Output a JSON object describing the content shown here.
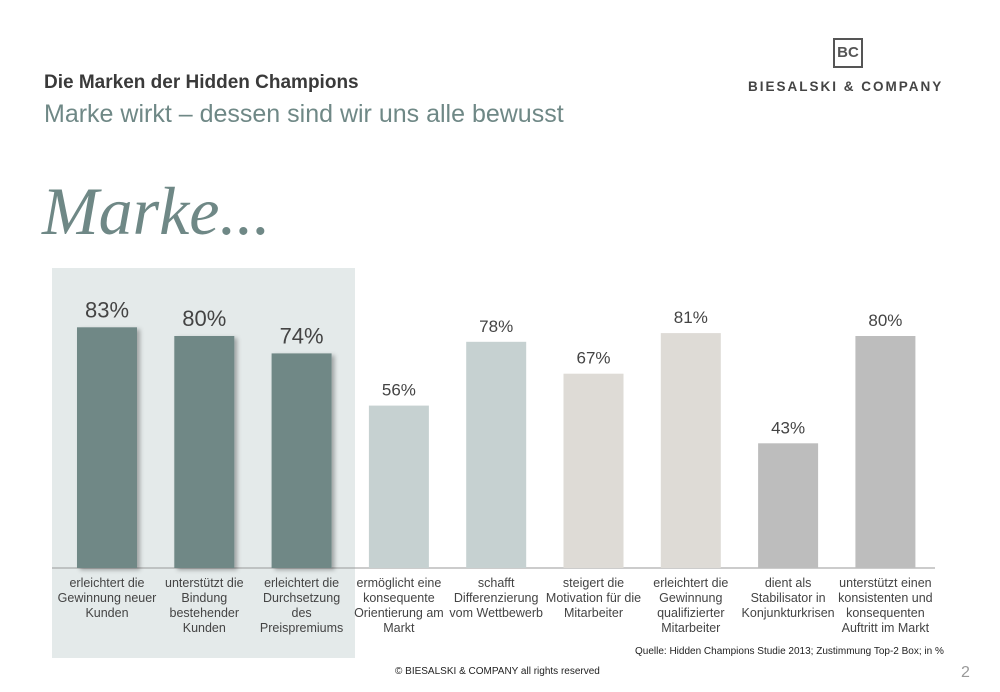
{
  "header": {
    "title": "Die Marken der Hidden Champions",
    "subtitle": "Marke wirkt – dessen sind wir uns alle bewusst",
    "logo_mark": "BC",
    "logo_text": "BIESALSKI & COMPANY"
  },
  "chart_data": {
    "type": "bar",
    "title": "Marke...",
    "categories": [
      "erleichtert die Gewinnung neuer Kunden",
      "unterstützt die Bindung bestehender Kunden",
      "erleichtert die Durchsetzung des Preispremiums",
      "ermöglicht eine konsequente Orientierung am Markt",
      "schafft Differenzierung vom Wettbewerb",
      "steigert die Motivation für die Mitarbeiter",
      "erleichtert die Gewinnung qualifizierter Mitarbeiter",
      "dient als Stabilisator in Konjunkturkrisen",
      "unterstützt einen konsistenten und konsequenten Auftritt im Markt"
    ],
    "values": [
      83,
      80,
      74,
      56,
      78,
      67,
      81,
      43,
      80
    ],
    "value_labels": [
      "83%",
      "80%",
      "74%",
      "56%",
      "78%",
      "67%",
      "81%",
      "43%",
      "80%"
    ],
    "colors": [
      "#6f8886",
      "#6f8886",
      "#6f8886",
      "#c6d1d1",
      "#c6d1d1",
      "#dedbd6",
      "#dedbd6",
      "#bdbdbd",
      "#bdbdbd"
    ],
    "source": "Quelle: Hidden Champions Studie 2013; Zustimmung Top-2 Box; in %"
  },
  "footer": {
    "copyright": "© BIESALSKI & COMPANY all rights reserved",
    "page": "2"
  }
}
